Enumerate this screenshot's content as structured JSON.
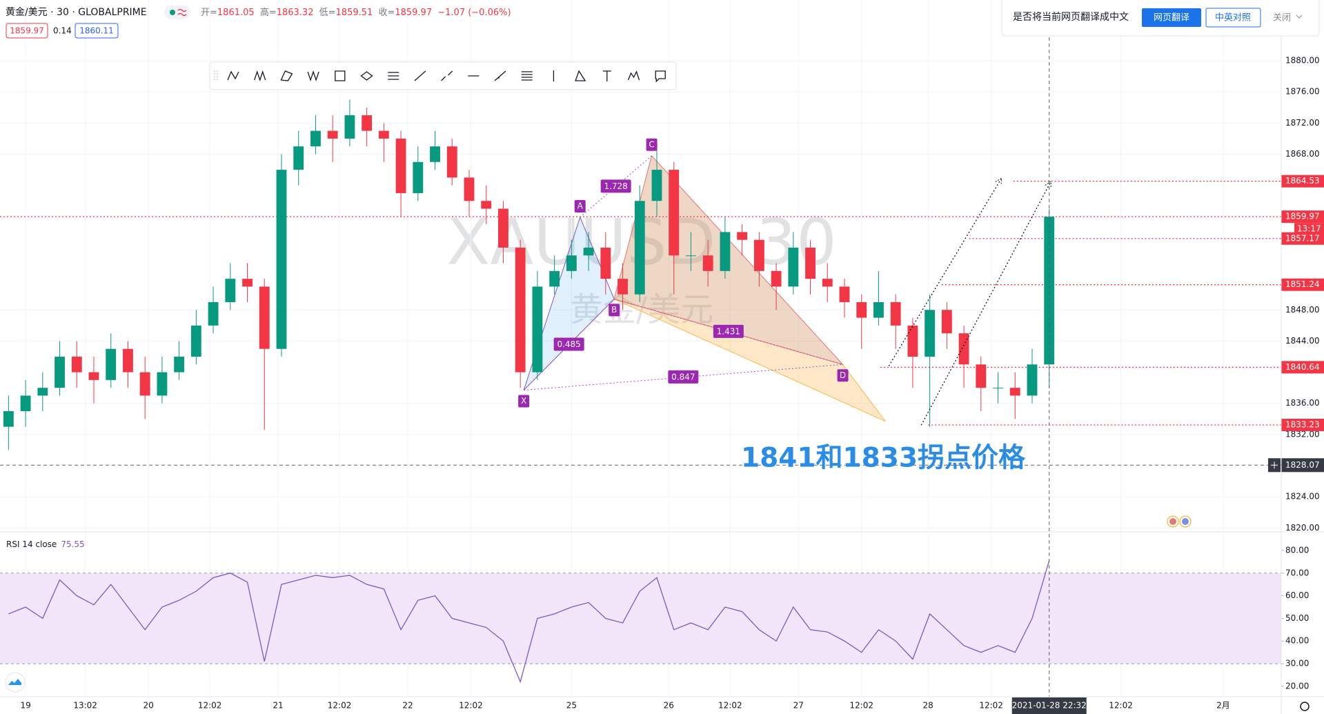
{
  "header": {
    "symbol": "黄金/美元 · 30 · GLOBALPRIME",
    "ohlc": [
      {
        "label": "开=",
        "value": "1861.05"
      },
      {
        "label": "高=",
        "value": "1863.32"
      },
      {
        "label": "低=",
        "value": "1859.51"
      },
      {
        "label": "收=",
        "value": "1859.97"
      }
    ],
    "change": "−1.07 (−0.06%)",
    "bid": "1859.97",
    "spread": "0.14",
    "ask": "1860.11"
  },
  "translate_bar": {
    "prompt": "是否将当前网页翻译成中文",
    "translate": "网页翻译",
    "bilingual": "中英对照",
    "close": "关闭"
  },
  "chart_data": [
    {
      "type": "candlestick",
      "watermark": "XAUUSD, 30",
      "watermark_sub": "黄金/美元",
      "annotation": "1841和1833拐点价格",
      "up_color": "#089981",
      "down_color": "#f23645",
      "level_color": "#f23645",
      "grid": true,
      "xlim": [
        -0.5,
        74.6
      ],
      "ylim": [
        1819.5,
        1887.8
      ],
      "yticks": [
        {
          "value": 1880,
          "label": "1880.00"
        },
        {
          "value": 1876,
          "label": "1876.00"
        },
        {
          "value": 1872,
          "label": "1872.00"
        },
        {
          "value": 1868,
          "label": "1868.00"
        },
        {
          "value": 1848,
          "label": "1848.00"
        },
        {
          "value": 1844,
          "label": "1844.00"
        },
        {
          "value": 1836,
          "label": "1836.00"
        },
        {
          "value": 1832,
          "label": "1832.00"
        },
        {
          "value": 1824,
          "label": "1824.00"
        },
        {
          "value": 1820,
          "label": "1820.00"
        }
      ],
      "open": [
        1833,
        1835,
        1837,
        1838,
        1842,
        1840,
        1839,
        1843,
        1840,
        1837,
        1840,
        1842,
        1846,
        1849,
        1852,
        1851,
        1843,
        1866,
        1869,
        1871,
        1870,
        1873,
        1871,
        1870,
        1863,
        1867,
        1869,
        1865,
        1862,
        1861,
        1856,
        1840,
        1851,
        1853,
        1855,
        1856,
        1852,
        1850,
        1862,
        1866,
        1855,
        1855,
        1853,
        1858,
        1857,
        1853,
        1851,
        1856,
        1852,
        1851,
        1849,
        1847,
        1849,
        1846,
        1842,
        1848,
        1845,
        1841,
        1838,
        1838,
        1837,
        1841
      ],
      "high": [
        1837,
        1839,
        1840,
        1844,
        1844,
        1842,
        1845,
        1844,
        1842,
        1842,
        1844,
        1848,
        1851,
        1854,
        1854,
        1852,
        1868,
        1871,
        1873,
        1873,
        1875,
        1874,
        1872,
        1871,
        1869,
        1871,
        1870,
        1866,
        1864,
        1862,
        1857,
        1853,
        1855,
        1857,
        1858,
        1858,
        1854,
        1864,
        1868.5,
        1867,
        1858,
        1857,
        1860,
        1859,
        1858,
        1854,
        1858,
        1857,
        1854,
        1852,
        1850,
        1853,
        1850,
        1847,
        1850,
        1849,
        1846,
        1842,
        1840,
        1840,
        1843,
        1861
      ],
      "low": [
        1830,
        1833,
        1835,
        1837,
        1838,
        1836,
        1838,
        1838,
        1834,
        1836,
        1839,
        1841,
        1845,
        1848,
        1849,
        1832.6,
        1842,
        1864,
        1868,
        1867,
        1869,
        1869,
        1867,
        1860,
        1862,
        1866,
        1864,
        1860,
        1859,
        1854,
        1838,
        1839,
        1850,
        1852,
        1853,
        1850,
        1848,
        1849,
        1860,
        1850,
        1853,
        1851,
        1852,
        1855,
        1851,
        1848,
        1850,
        1850,
        1849,
        1847,
        1843,
        1846,
        1843,
        1838,
        1833,
        1843,
        1838,
        1835,
        1836,
        1834,
        1836,
        1838
      ],
      "close": [
        1835,
        1837,
        1838,
        1842,
        1840,
        1839,
        1843,
        1840,
        1837,
        1840,
        1842,
        1846,
        1849,
        1852,
        1851,
        1843,
        1866,
        1869,
        1871,
        1870,
        1873,
        1871,
        1870,
        1863,
        1867,
        1869,
        1865,
        1862,
        1861,
        1856,
        1840,
        1851,
        1853,
        1855,
        1856,
        1852,
        1850,
        1862,
        1866,
        1855,
        1855,
        1853,
        1858,
        1857,
        1853,
        1851,
        1856,
        1852,
        1851,
        1849,
        1847,
        1849,
        1846,
        1842,
        1848,
        1845,
        1841,
        1838,
        1838,
        1837,
        1841,
        1859.97
      ],
      "price_lines": [
        {
          "value": 1864.53,
          "from": 58.9
        },
        {
          "value": 1859.97,
          "from": -0.5,
          "countdown": "13:17"
        },
        {
          "value": 1857.17,
          "from": 56.3
        },
        {
          "value": 1851.24,
          "from": 54.7
        },
        {
          "value": 1840.64,
          "from": 51.1
        },
        {
          "value": 1833.23,
          "from": 53.9
        }
      ],
      "pattern": {
        "points": [
          {
            "label": "X",
            "x": 30.2,
            "y": 1837.7
          },
          {
            "label": "A",
            "x": 33.5,
            "y": 1859.9
          },
          {
            "label": "B",
            "x": 35.5,
            "y": 1849.4
          },
          {
            "label": "C",
            "x": 37.7,
            "y": 1867.8
          },
          {
            "label": "D",
            "x": 48.9,
            "y": 1841.0
          }
        ],
        "ratios": [
          "0.485",
          "1.728",
          "1.431",
          "0.847"
        ],
        "projection": {
          "x": 51.4,
          "y": 1833.7
        }
      },
      "trend_lines": [
        {
          "x1": 51.6,
          "y1": 1840.8,
          "x2": 58.2,
          "y2": 1864.9
        },
        {
          "x1": 53.5,
          "y1": 1833.2,
          "x2": 61.1,
          "y2": 1864.5
        }
      ],
      "crosshair": {
        "price": 1828.07,
        "x": 61.0,
        "x_label": "2021-01-28   22:32"
      }
    },
    {
      "type": "line",
      "title": "RSI 14 close",
      "color": "#7e57c2",
      "band": [
        30,
        70
      ],
      "band_color": "#f3e6fb",
      "xlim": [
        -0.5,
        74.6
      ],
      "ylim": [
        15.4,
        88.2
      ],
      "yticks": [
        {
          "value": 80,
          "label": "80.00"
        },
        {
          "value": 70,
          "label": "70.00"
        },
        {
          "value": 60,
          "label": "60.00"
        },
        {
          "value": 50,
          "label": "50.00"
        },
        {
          "value": 40,
          "label": "40.00"
        },
        {
          "value": 30,
          "label": "30.00"
        },
        {
          "value": 20,
          "label": "20.00"
        }
      ],
      "xticks": [
        {
          "value": 1.0,
          "label": "19"
        },
        {
          "value": 4.5,
          "label": "13:02"
        },
        {
          "value": 8.2,
          "label": "20"
        },
        {
          "value": 11.8,
          "label": "12:02"
        },
        {
          "value": 15.8,
          "label": "21"
        },
        {
          "value": 19.4,
          "label": "12:02"
        },
        {
          "value": 23.4,
          "label": "22"
        },
        {
          "value": 27.1,
          "label": "12:02"
        },
        {
          "value": 33.0,
          "label": "25"
        },
        {
          "value": 38.7,
          "label": "26"
        },
        {
          "value": 42.3,
          "label": "12:02"
        },
        {
          "value": 46.3,
          "label": "27"
        },
        {
          "value": 50.0,
          "label": "12:02"
        },
        {
          "value": 53.9,
          "label": "28"
        },
        {
          "value": 57.6,
          "label": "12:02"
        },
        {
          "value": 65.2,
          "label": "12:02"
        },
        {
          "value": 71.2,
          "label": "2月"
        }
      ],
      "values": [
        52,
        55,
        50,
        67,
        60,
        56,
        65,
        55,
        45,
        55,
        58,
        62,
        68,
        70,
        66,
        31,
        65,
        67,
        69,
        68,
        69,
        65,
        63,
        45,
        58,
        60,
        50,
        48,
        46,
        40,
        22,
        50,
        52,
        55,
        57,
        50,
        48,
        62,
        68,
        45,
        48,
        45,
        55,
        53,
        45,
        40,
        55,
        45,
        44,
        40,
        35,
        45,
        40,
        32,
        52,
        45,
        38,
        35,
        38,
        35,
        50,
        75.55
      ]
    }
  ]
}
